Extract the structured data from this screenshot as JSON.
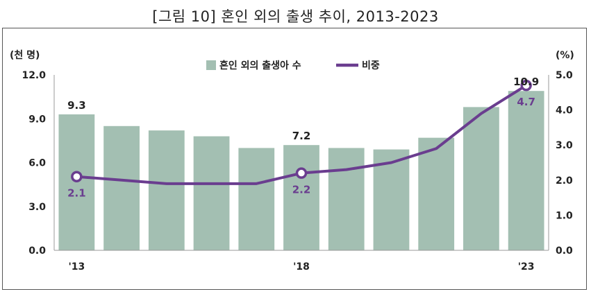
{
  "title": "[그림 10] 혼인 외의 출생 추이, 2013-2023",
  "chart_data": {
    "type": "bar",
    "x": [
      "2013",
      "2014",
      "2015",
      "2016",
      "2017",
      "2018",
      "2019",
      "2020",
      "2021",
      "2022",
      "2023"
    ],
    "x_tick_labels": [
      "'13",
      "'18",
      "'23"
    ],
    "x_tick_positions": [
      0,
      5,
      10
    ],
    "y_left": {
      "unit": "(천 명)",
      "ylim": [
        0,
        12
      ],
      "ticks": [
        "0.0",
        "3.0",
        "6.0",
        "9.0",
        "12.0"
      ]
    },
    "y_right": {
      "unit": "(%)",
      "ylim": [
        0,
        5
      ],
      "ticks": [
        "0.0",
        "1.0",
        "2.0",
        "3.0",
        "4.0",
        "5.0"
      ]
    },
    "series": [
      {
        "name": "혼인 외의 출생아 수",
        "kind": "bar",
        "axis": "left",
        "color": "#a3bfb2",
        "values": [
          9.3,
          8.5,
          8.2,
          7.8,
          7.0,
          7.2,
          7.0,
          6.9,
          7.7,
          9.8,
          10.9
        ],
        "labels": [
          {
            "index": 0,
            "text": "9.3"
          },
          {
            "index": 5,
            "text": "7.2"
          },
          {
            "index": 10,
            "text": "10.9"
          }
        ]
      },
      {
        "name": "비중",
        "kind": "line",
        "axis": "right",
        "color": "#6a3d8f",
        "values": [
          2.1,
          2.0,
          1.9,
          1.9,
          1.9,
          2.2,
          2.3,
          2.5,
          2.9,
          3.9,
          4.7
        ],
        "labels": [
          {
            "index": 0,
            "text": "2.1"
          },
          {
            "index": 5,
            "text": "2.2"
          },
          {
            "index": 10,
            "text": "4.7"
          }
        ],
        "markers": [
          0,
          5,
          10
        ]
      }
    ],
    "legend": "top-center",
    "grid": false
  }
}
